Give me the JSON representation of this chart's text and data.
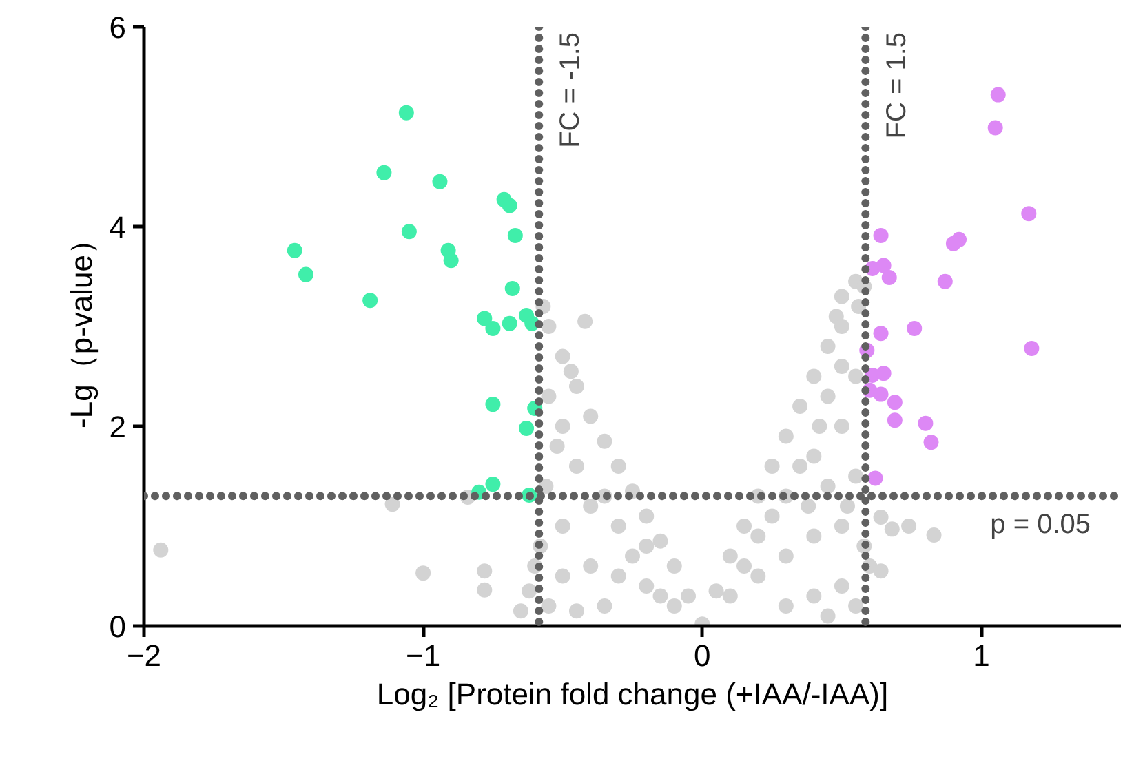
{
  "chart_data": {
    "type": "scatter",
    "xlabel": "Log₂ [Protein fold change (+IAA/-IAA)]",
    "ylabel": "-Lg（p-value）",
    "xlim": [
      -2,
      1.5
    ],
    "xticks": [
      -2,
      -1,
      0,
      1
    ],
    "ylim": [
      0,
      6
    ],
    "yticks": [
      0,
      2,
      4,
      6
    ],
    "grid": false,
    "marker": "circle",
    "series": [
      {
        "color": "#d3d3d3",
        "x": [
          -1.94,
          -1.11,
          -1.0,
          -0.78,
          -0.78,
          -0.84,
          -0.05,
          -0.1,
          -0.15,
          -0.2,
          -0.25,
          -0.3,
          -0.35,
          -0.4,
          -0.45,
          -0.5,
          -0.55,
          -0.57,
          -0.42,
          -0.5,
          -0.47,
          -0.55,
          -0.1,
          -0.2,
          -0.3,
          -0.4,
          -0.5,
          -0.55,
          -0.2,
          -0.3,
          -0.4,
          -0.5,
          -0.45,
          -0.35,
          -0.25,
          -0.15,
          -0.35,
          -0.45,
          -0.58,
          -0.6,
          -0.62,
          -0.65,
          -0.56,
          -0.52,
          0.0,
          0.05,
          0.1,
          0.15,
          0.2,
          0.25,
          0.3,
          0.35,
          0.4,
          0.45,
          0.48,
          0.5,
          0.55,
          0.58,
          0.56,
          0.5,
          0.1,
          0.2,
          0.3,
          0.4,
          0.5,
          0.2,
          0.3,
          0.4,
          0.5,
          0.55,
          0.45,
          0.35,
          0.25,
          0.15,
          0.3,
          0.4,
          0.5,
          0.55,
          0.45,
          0.55,
          0.52,
          0.58,
          0.6,
          0.45,
          0.38,
          0.5,
          0.42,
          0.64,
          0.68,
          0.74,
          0.83,
          0.64
        ],
        "values": [
          0.76,
          1.22,
          0.53,
          0.55,
          0.36,
          1.29,
          0.3,
          0.6,
          0.85,
          1.1,
          1.35,
          1.6,
          1.85,
          2.1,
          2.4,
          2.7,
          3.0,
          3.2,
          3.05,
          2.0,
          2.55,
          2.3,
          0.2,
          0.4,
          0.5,
          0.6,
          0.5,
          0.2,
          0.8,
          1.0,
          1.2,
          1.0,
          1.6,
          1.3,
          0.7,
          0.3,
          0.2,
          0.15,
          0.8,
          0.6,
          0.35,
          0.15,
          1.4,
          1.8,
          0.02,
          0.35,
          0.7,
          1.0,
          1.3,
          1.6,
          1.9,
          2.2,
          2.5,
          2.8,
          3.1,
          3.3,
          3.45,
          3.4,
          3.2,
          3.0,
          0.3,
          0.5,
          0.7,
          0.9,
          1.0,
          0.9,
          1.3,
          1.7,
          2.0,
          2.5,
          2.3,
          1.6,
          1.1,
          0.6,
          0.2,
          0.3,
          0.4,
          0.2,
          0.1,
          1.5,
          1.2,
          0.8,
          0.6,
          1.4,
          1.2,
          2.6,
          2.0,
          1.09,
          0.97,
          1.0,
          0.91,
          0.55
        ]
      },
      {
        "color": "#40eeaa",
        "x": [
          -1.06,
          -1.14,
          -0.94,
          -0.71,
          -0.69,
          -1.05,
          -0.67,
          -1.46,
          -0.91,
          -0.9,
          -1.42,
          -1.19,
          -0.68,
          -0.78,
          -0.75,
          -0.69,
          -0.63,
          -0.61,
          -0.75,
          -0.6,
          -0.63,
          -0.75,
          -0.8,
          -0.62
        ],
        "values": [
          5.14,
          4.54,
          4.45,
          4.27,
          4.21,
          3.95,
          3.91,
          3.76,
          3.76,
          3.66,
          3.52,
          3.26,
          3.38,
          3.08,
          2.98,
          3.03,
          3.11,
          3.03,
          2.22,
          2.18,
          1.98,
          1.42,
          1.34,
          1.31
        ]
      },
      {
        "color": "#dd88f5",
        "x": [
          1.06,
          1.05,
          1.17,
          0.64,
          0.92,
          0.9,
          0.61,
          0.65,
          0.67,
          0.87,
          0.64,
          0.76,
          0.59,
          1.18,
          0.61,
          0.65,
          0.6,
          0.64,
          0.69,
          0.69,
          0.8,
          0.82,
          0.62
        ],
        "values": [
          5.32,
          4.99,
          4.13,
          3.91,
          3.87,
          3.83,
          3.58,
          3.61,
          3.49,
          3.45,
          2.93,
          2.98,
          2.76,
          2.78,
          2.51,
          2.53,
          2.36,
          2.32,
          2.24,
          2.06,
          2.03,
          1.84,
          1.48
        ]
      }
    ],
    "ref_lines": [
      {
        "axis": "x",
        "value": -0.585,
        "color": "#606060",
        "line_style": "dotted"
      },
      {
        "axis": "x",
        "value": 0.585,
        "color": "#606060",
        "line_style": "dotted"
      },
      {
        "axis": "y",
        "value": 1.301,
        "color": "#606060",
        "line_style": "dotted"
      }
    ],
    "annotations": [
      "FC = -1.5",
      "FC = 1.5",
      "p = 0.05"
    ]
  }
}
